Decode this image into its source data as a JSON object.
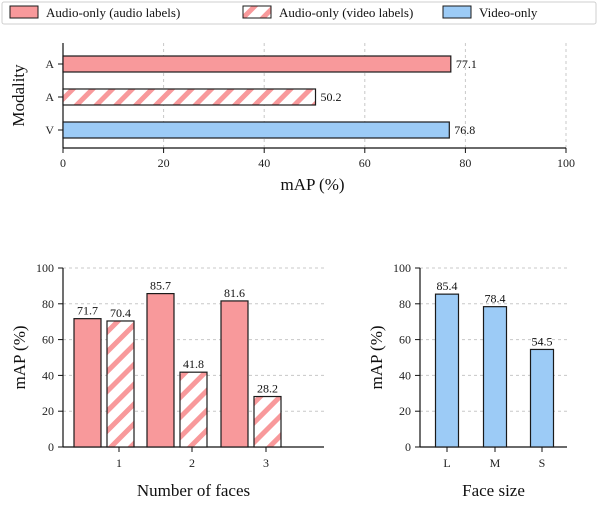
{
  "colors": {
    "audio_audio": "#f8999b",
    "video": "#9ccbf6",
    "hatch": "#f8999b",
    "edge": "#1a1a1a",
    "grid": "#c8c8c8"
  },
  "legend": [
    {
      "label": "Audio-only (audio labels)",
      "fill": "solid-red"
    },
    {
      "label": "Audio-only (video labels)",
      "fill": "hatch-red"
    },
    {
      "label": "Video-only",
      "fill": "solid-blue"
    }
  ],
  "chart_data": [
    {
      "type": "bar",
      "orientation": "horizontal",
      "categories": [
        "A",
        "A",
        "V"
      ],
      "series": [
        {
          "name": "Audio-only (audio labels)",
          "values": [
            77.1,
            null,
            null
          ]
        },
        {
          "name": "Audio-only (video labels)",
          "values": [
            null,
            50.2,
            null
          ]
        },
        {
          "name": "Video-only",
          "values": [
            null,
            null,
            76.8
          ]
        }
      ],
      "data_labels": [
        "77.1",
        "50.2",
        "76.8"
      ],
      "xlabel": "mAP (%)",
      "ylabel": "Modality",
      "xlim": [
        0,
        100
      ],
      "xticks": [
        "0",
        "20",
        "40",
        "60",
        "80",
        "100"
      ],
      "grid": "vertical dashed"
    },
    {
      "type": "bar",
      "categories": [
        "1",
        "2",
        "3"
      ],
      "series": [
        {
          "name": "Audio-only (audio labels)",
          "values": [
            71.7,
            85.7,
            81.6
          ]
        },
        {
          "name": "Audio-only (video labels)",
          "values": [
            70.4,
            41.8,
            28.2
          ]
        }
      ],
      "xlabel": "Number of faces",
      "ylabel": "mAP (%)",
      "ylim": [
        0,
        100
      ],
      "yticks": [
        "0",
        "20",
        "40",
        "60",
        "80",
        "100"
      ],
      "grid": "horizontal dashed"
    },
    {
      "type": "bar",
      "categories": [
        "L",
        "M",
        "S"
      ],
      "series": [
        {
          "name": "Video-only",
          "values": [
            85.4,
            78.4,
            54.5
          ]
        }
      ],
      "xlabel": "Face size",
      "ylabel": "mAP (%)",
      "ylim": [
        0,
        100
      ],
      "yticks": [
        "0",
        "20",
        "40",
        "60",
        "80",
        "100"
      ],
      "grid": "horizontal dashed"
    }
  ]
}
